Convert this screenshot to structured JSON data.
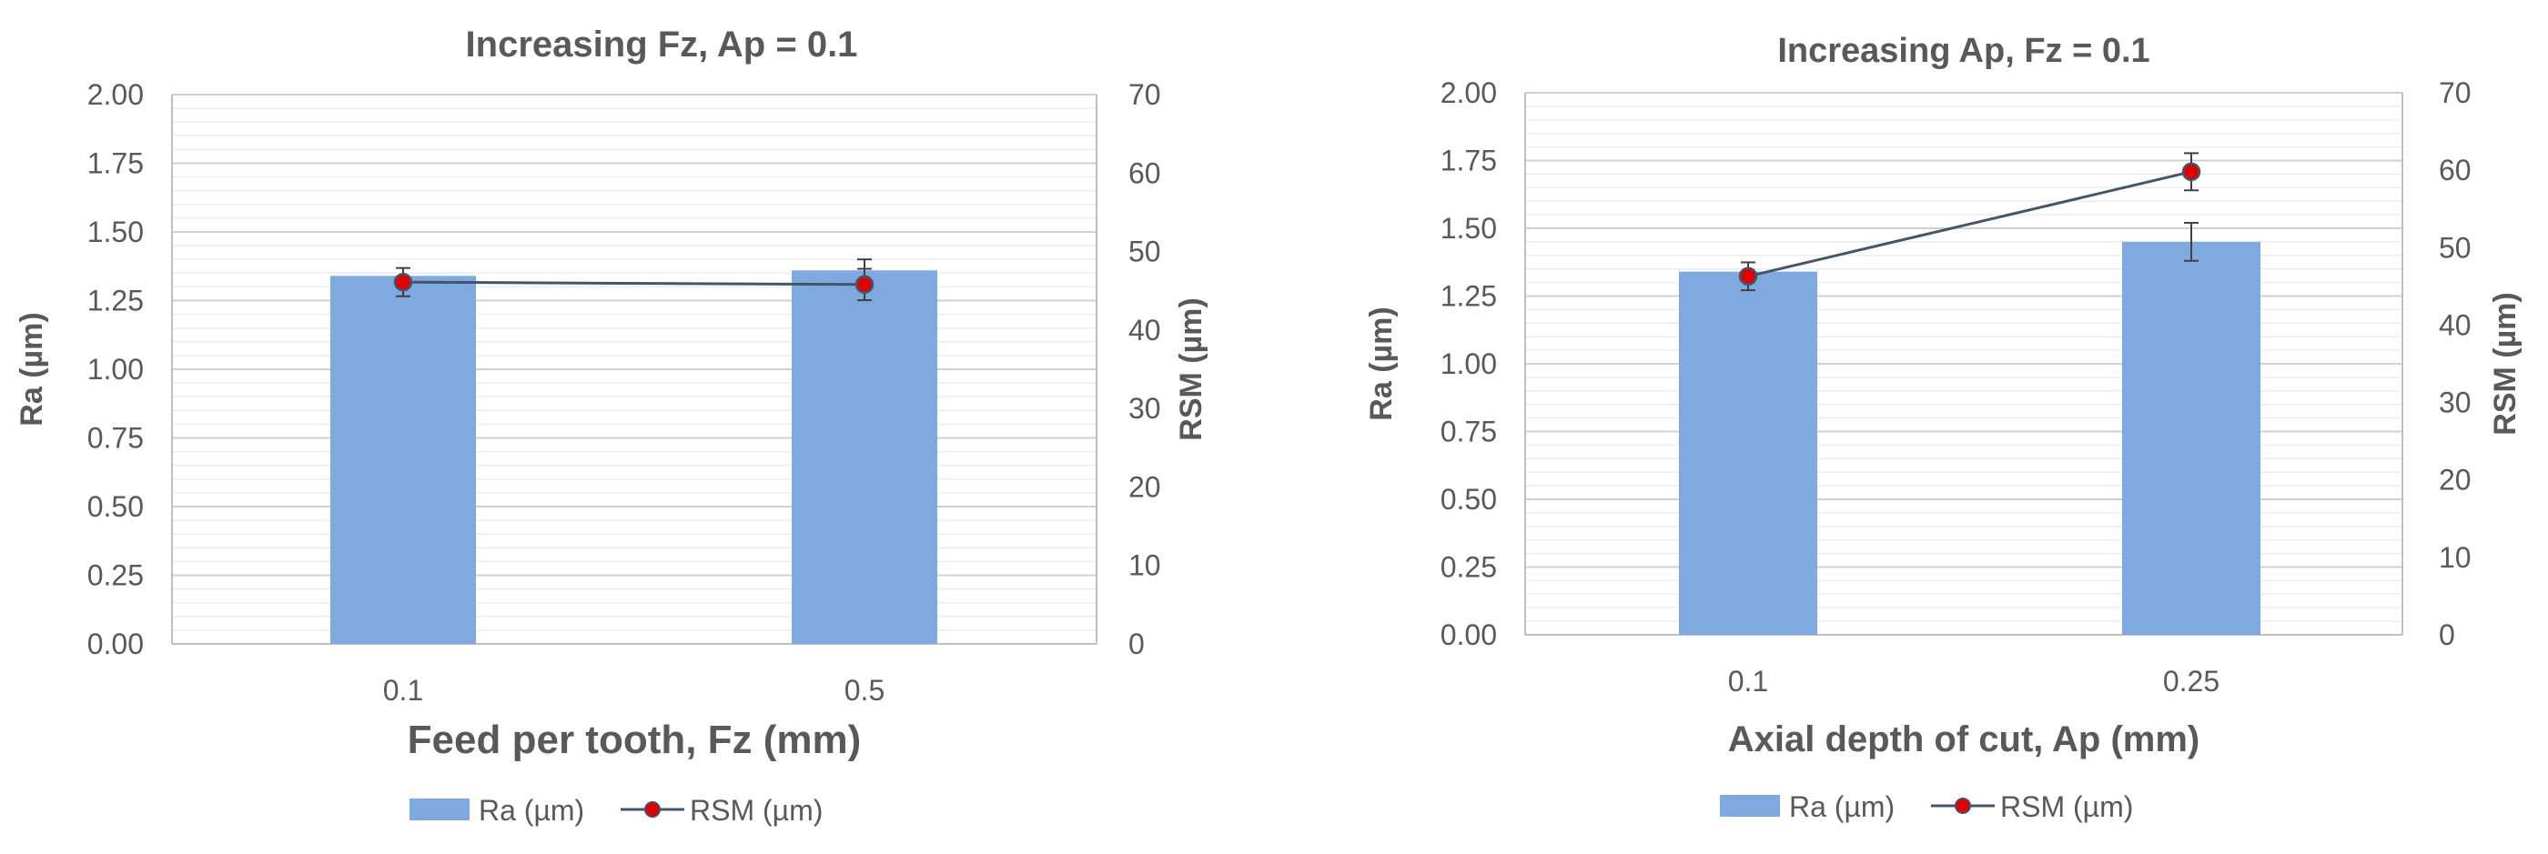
{
  "chart_data": [
    {
      "type": "bar",
      "title": "Increasing Fz,    Ap = 0.1",
      "xlabel": "Feed per tooth, Fz (mm)",
      "ylabel": "Ra (µm)",
      "y2label": "RSM (µm)",
      "categories": [
        "0.1",
        "0.5"
      ],
      "ylim": [
        0,
        2
      ],
      "yticks": [
        "0.00",
        "0.25",
        "0.50",
        "0.75",
        "1.00",
        "1.25",
        "1.50",
        "1.75",
        "2.00"
      ],
      "y2lim": [
        0,
        70
      ],
      "y2ticks": [
        "0",
        "10",
        "20",
        "30",
        "40",
        "50",
        "60",
        "70"
      ],
      "grid": true,
      "legend_position": "bottom",
      "series": [
        {
          "name": "Ra (µm)",
          "type": "bar",
          "axis": "left",
          "values": [
            1.34,
            1.36
          ],
          "error": [
            0,
            0.04
          ],
          "color": "#7faadf"
        },
        {
          "name": "RSM (µm)",
          "type": "line",
          "axis": "right",
          "values": [
            46.1,
            45.8
          ],
          "error": [
            1.8,
            2.0
          ],
          "color": "#44546a",
          "marker_color": "#e00000"
        }
      ]
    },
    {
      "type": "bar",
      "title": "Increasing Ap,   Fz = 0.1",
      "xlabel": "Axial depth of cut, Ap (mm)",
      "ylabel": "Ra (µm)",
      "y2label": "RSM (µm)",
      "categories": [
        "0.1",
        "0.25"
      ],
      "ylim": [
        0,
        2
      ],
      "yticks": [
        "0.00",
        "0.25",
        "0.50",
        "0.75",
        "1.00",
        "1.25",
        "1.50",
        "1.75",
        "2.00"
      ],
      "y2lim": [
        0,
        70
      ],
      "y2ticks": [
        "0",
        "10",
        "20",
        "30",
        "40",
        "50",
        "60",
        "70"
      ],
      "grid": true,
      "legend_position": "bottom",
      "series": [
        {
          "name": "Ra (µm)",
          "type": "bar",
          "axis": "left",
          "values": [
            1.34,
            1.45
          ],
          "error": [
            0,
            0.07
          ],
          "color": "#7faadf"
        },
        {
          "name": "RSM (µm)",
          "type": "line",
          "axis": "right",
          "values": [
            46.3,
            59.8
          ],
          "error": [
            1.8,
            2.4
          ],
          "color": "#44546a",
          "marker_color": "#e00000"
        }
      ]
    }
  ]
}
